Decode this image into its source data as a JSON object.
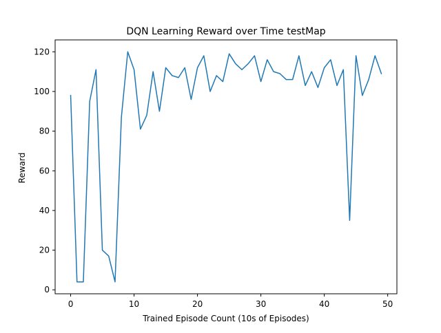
{
  "chart_data": {
    "type": "line",
    "title": "DQN Learning Reward over Time testMap",
    "xlabel": "Trained Episode Count (10s of Episodes)",
    "ylabel": "Reward",
    "xlim": [
      -2.45,
      51.45
    ],
    "ylim": [
      -2,
      126
    ],
    "xticks": [
      0,
      10,
      20,
      30,
      40,
      50
    ],
    "yticks": [
      0,
      20,
      40,
      60,
      80,
      100,
      120
    ],
    "xtick_labels": [
      "0",
      "10",
      "20",
      "30",
      "40",
      "50"
    ],
    "ytick_labels": [
      "0",
      "20",
      "40",
      "60",
      "80",
      "100",
      "120"
    ],
    "grid": false,
    "series": [
      {
        "color": "#1f77b4",
        "x": [
          0,
          1,
          2,
          3,
          4,
          5,
          6,
          7,
          8,
          9,
          10,
          11,
          12,
          13,
          14,
          15,
          16,
          17,
          18,
          19,
          20,
          21,
          22,
          23,
          24,
          25,
          26,
          27,
          28,
          29,
          30,
          31,
          32,
          33,
          34,
          35,
          36,
          37,
          38,
          39,
          40,
          41,
          42,
          43,
          44,
          45,
          46,
          47,
          48,
          49
        ],
        "y": [
          98,
          4,
          4,
          95,
          111,
          20,
          17,
          4,
          87,
          120,
          111,
          81,
          88,
          110,
          90,
          112,
          108,
          107,
          112,
          96,
          112,
          118,
          100,
          108,
          105,
          119,
          114,
          111,
          114,
          118,
          105,
          116,
          110,
          109,
          106,
          106,
          118,
          103,
          110,
          102,
          112,
          116,
          103,
          111,
          35,
          118,
          98,
          106,
          118,
          109
        ]
      }
    ]
  }
}
